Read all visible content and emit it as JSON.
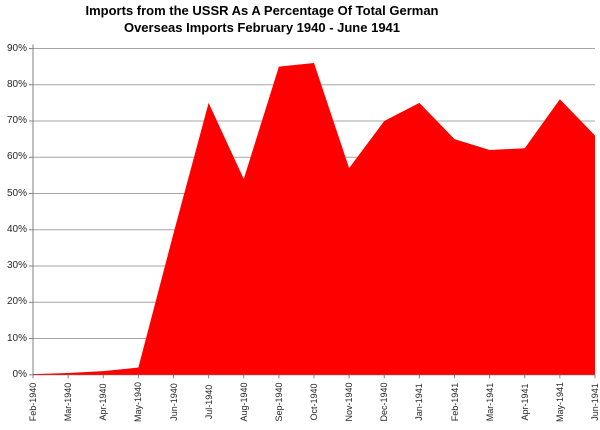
{
  "title": {
    "line1": "Imports from the USSR As A Percentage Of Total German",
    "line2": "Overseas Imports February 1940 - June 1941"
  },
  "chart_data": {
    "type": "area",
    "title": "Imports from the USSR As A Percentage Of Total German Overseas Imports February 1940 - June 1941",
    "categories": [
      "Feb-1940",
      "Mar-1940",
      "Apr-1940",
      "May-1940",
      "Jun-1940",
      "Jul-1940",
      "Aug-1940",
      "Sep-1940",
      "Oct-1940",
      "Nov-1940",
      "Dec-1940",
      "Jan-1941",
      "Feb-1941",
      "Mar-1941",
      "Apr-1941",
      "May-1941",
      "Jun-1941"
    ],
    "series": [
      {
        "name": "Imports from the USSR (% of total German overseas imports)",
        "values": [
          0.2,
          0.5,
          1,
          2,
          39,
          75,
          54,
          85,
          86,
          57,
          70,
          75,
          65,
          62,
          62.5,
          76,
          66
        ]
      }
    ],
    "unit": "%",
    "xlabel": "",
    "ylabel": "",
    "ylim": [
      0,
      90
    ],
    "y_tick_step": 10,
    "y_tick_labels": [
      "90%",
      "80%",
      "70%",
      "60%",
      "50%",
      "40%",
      "30%",
      "20%",
      "10%",
      "0%"
    ],
    "grid": true,
    "legend": false,
    "colors": {
      "series_fill": "#FF0000",
      "gridline": "#A6A6A6",
      "axis": "#808080",
      "tick_label": "#262626",
      "title_text": "#000000",
      "background": "#FFFFFF"
    }
  }
}
